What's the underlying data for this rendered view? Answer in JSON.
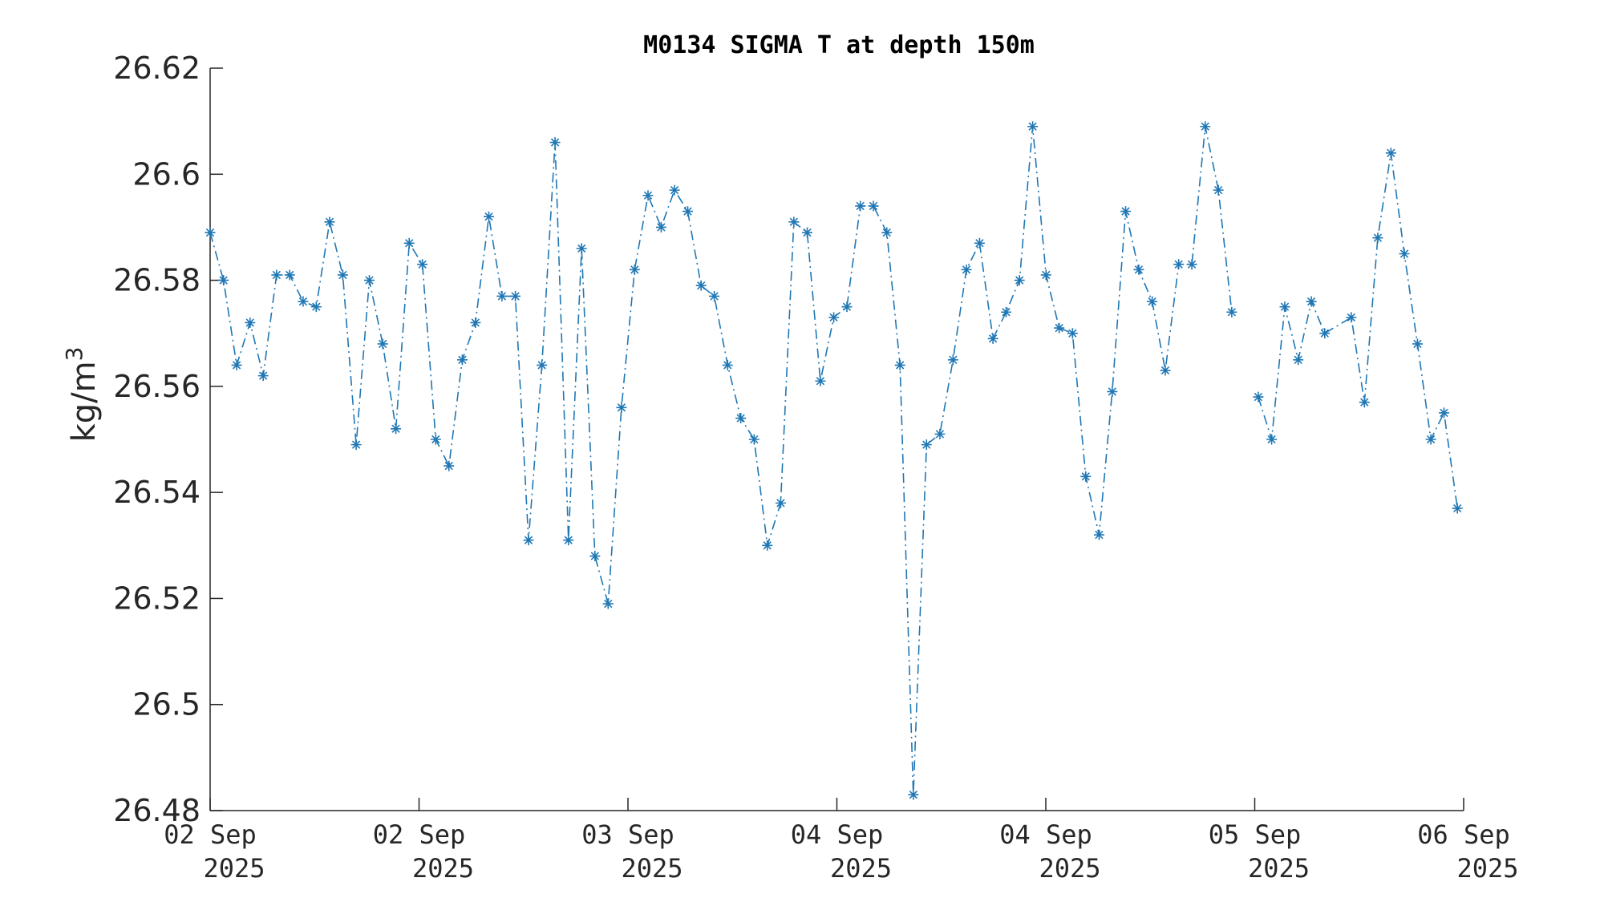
{
  "chart_data": {
    "type": "line",
    "title": "M0134 SIGMA T at depth 150m",
    "ylabel": "kg/m",
    "ylabel_sup": "3",
    "xlabel": "",
    "ylim": [
      26.48,
      26.62
    ],
    "yticks": [
      26.48,
      26.5,
      26.52,
      26.54,
      26.56,
      26.58,
      26.6,
      26.62
    ],
    "ytick_labels": [
      "26.48",
      "26.5",
      "26.52",
      "26.54",
      "26.56",
      "26.58",
      "26.6",
      "26.62"
    ],
    "xlim": [
      0,
      6
    ],
    "xticks": [
      0,
      1,
      2,
      3,
      4,
      5,
      6
    ],
    "xtick_labels": [
      [
        "02 Sep",
        "2025"
      ],
      [
        "02 Sep",
        "2025"
      ],
      [
        "03 Sep",
        "2025"
      ],
      [
        "04 Sep",
        "2025"
      ],
      [
        "04 Sep",
        "2025"
      ],
      [
        "05 Sep",
        "2025"
      ],
      [
        "06 Sep",
        "2025"
      ]
    ],
    "grid": false,
    "marker": "asterisk",
    "line_style": "dash-dot",
    "color": "#1f77b4",
    "series": [
      {
        "points": [
          [
            0.0,
            26.589
          ],
          [
            0.064,
            26.58
          ],
          [
            0.127,
            26.564
          ],
          [
            0.191,
            26.572
          ],
          [
            0.254,
            26.562
          ],
          [
            0.318,
            26.581
          ],
          [
            0.381,
            26.581
          ],
          [
            0.445,
            26.576
          ],
          [
            0.508,
            26.575
          ],
          [
            0.572,
            26.591
          ],
          [
            0.635,
            26.581
          ],
          [
            0.699,
            26.549
          ],
          [
            0.762,
            26.58
          ],
          [
            0.826,
            26.568
          ],
          [
            0.889,
            26.552
          ],
          [
            0.953,
            26.587
          ],
          [
            1.016,
            26.583
          ],
          [
            1.08,
            26.55
          ],
          [
            1.143,
            26.545
          ],
          [
            1.207,
            26.565
          ],
          [
            1.27,
            26.572
          ],
          [
            1.334,
            26.592
          ],
          [
            1.397,
            26.577
          ],
          [
            1.461,
            26.577
          ],
          [
            1.524,
            26.531
          ],
          [
            1.588,
            26.564
          ],
          [
            1.651,
            26.606
          ],
          [
            1.715,
            26.531
          ],
          [
            1.778,
            26.586
          ],
          [
            1.842,
            26.528
          ],
          [
            1.905,
            26.519
          ],
          [
            1.969,
            26.556
          ],
          [
            2.032,
            26.582
          ],
          [
            2.096,
            26.596
          ],
          [
            2.159,
            26.59
          ],
          [
            2.223,
            26.597
          ],
          [
            2.286,
            26.593
          ],
          [
            2.35,
            26.579
          ],
          [
            2.413,
            26.577
          ],
          [
            2.477,
            26.564
          ],
          [
            2.54,
            26.554
          ],
          [
            2.604,
            26.55
          ],
          [
            2.667,
            26.53
          ],
          [
            2.731,
            26.538
          ],
          [
            2.794,
            26.591
          ],
          [
            2.858,
            26.589
          ],
          [
            2.921,
            26.561
          ],
          [
            2.985,
            26.573
          ],
          [
            3.048,
            26.575
          ],
          [
            3.112,
            26.594
          ],
          [
            3.175,
            26.594
          ],
          [
            3.239,
            26.589
          ],
          [
            3.302,
            26.564
          ],
          [
            3.366,
            26.483
          ],
          [
            3.429,
            26.549
          ],
          [
            3.493,
            26.551
          ],
          [
            3.556,
            26.565
          ],
          [
            3.62,
            26.582
          ],
          [
            3.683,
            26.587
          ],
          [
            3.747,
            26.569
          ],
          [
            3.81,
            26.574
          ],
          [
            3.874,
            26.58
          ],
          [
            3.937,
            26.609
          ],
          [
            4.001,
            26.581
          ],
          [
            4.064,
            26.571
          ],
          [
            4.128,
            26.57
          ],
          [
            4.191,
            26.543
          ],
          [
            4.255,
            26.532
          ],
          [
            4.318,
            26.559
          ],
          [
            4.382,
            26.593
          ],
          [
            4.445,
            26.582
          ],
          [
            4.509,
            26.576
          ],
          [
            4.572,
            26.563
          ],
          [
            4.636,
            26.583
          ],
          [
            4.699,
            26.583
          ],
          [
            4.763,
            26.609
          ],
          [
            4.826,
            26.597
          ],
          [
            4.89,
            26.574
          ],
          null,
          [
            5.017,
            26.558
          ],
          [
            5.081,
            26.55
          ],
          [
            5.144,
            26.575
          ],
          [
            5.208,
            26.565
          ],
          [
            5.271,
            26.576
          ],
          [
            5.335,
            26.57
          ],
          [
            5.462,
            26.573
          ],
          [
            5.525,
            26.557
          ],
          [
            5.589,
            26.588
          ],
          [
            5.652,
            26.604
          ],
          [
            5.716,
            26.585
          ],
          [
            5.779,
            26.568
          ],
          [
            5.843,
            26.55
          ],
          [
            5.906,
            26.555
          ],
          [
            5.97,
            26.537
          ]
        ]
      }
    ]
  }
}
